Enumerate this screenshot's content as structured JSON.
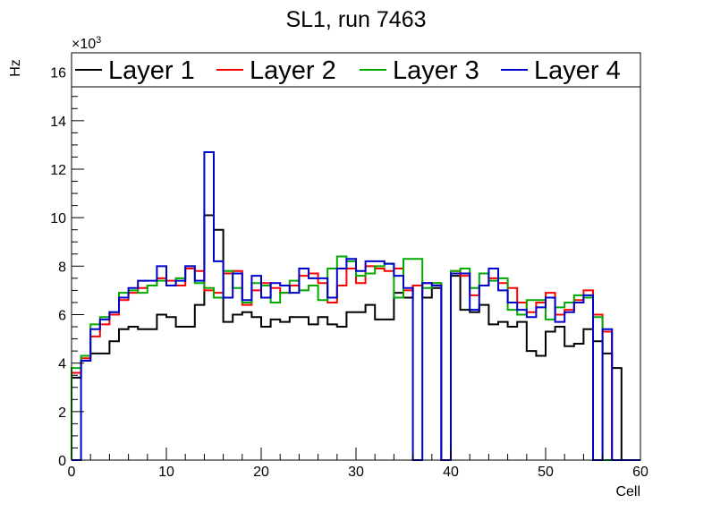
{
  "chart_data": {
    "type": "line",
    "title": "SL1, run 7463",
    "xlabel": "Cell",
    "ylabel": "Hz",
    "multiplier_base": "×10",
    "multiplier_exp": "3",
    "xlim": [
      0,
      60
    ],
    "ylim": [
      0,
      16.8
    ],
    "xticks": [
      0,
      10,
      20,
      30,
      40,
      50,
      60
    ],
    "yticks": [
      0,
      2,
      4,
      6,
      8,
      10,
      12,
      14,
      16
    ],
    "grid": false,
    "legend_position": "top",
    "x": [
      0,
      1,
      2,
      3,
      4,
      5,
      6,
      7,
      8,
      9,
      10,
      11,
      12,
      13,
      14,
      15,
      16,
      17,
      18,
      19,
      20,
      21,
      22,
      23,
      24,
      25,
      26,
      27,
      28,
      29,
      30,
      31,
      32,
      33,
      34,
      35,
      36,
      37,
      38,
      39,
      40,
      41,
      42,
      43,
      44,
      45,
      46,
      47,
      48,
      49,
      50,
      51,
      52,
      53,
      54,
      55,
      56,
      57,
      58,
      59
    ],
    "series": [
      {
        "name": "Layer 1",
        "color": "#000000",
        "values": [
          3.4,
          4.1,
          4.4,
          4.4,
          4.9,
          5.4,
          5.5,
          5.4,
          5.4,
          6.0,
          5.9,
          5.5,
          5.5,
          6.4,
          10.1,
          9.5,
          5.7,
          6.0,
          6.1,
          5.9,
          5.5,
          5.8,
          5.7,
          5.9,
          5.9,
          5.6,
          5.9,
          5.6,
          5.5,
          6.1,
          6.1,
          6.4,
          5.8,
          5.8,
          6.9,
          6.7,
          7.2,
          6.7,
          7.1,
          0,
          7.6,
          6.2,
          6.1,
          6.4,
          5.6,
          5.7,
          5.5,
          5.7,
          4.5,
          4.3,
          5.3,
          5.5,
          4.7,
          4.8,
          5.4,
          4.9,
          4.4,
          3.8,
          0,
          0
        ]
      },
      {
        "name": "Layer 2",
        "color": "#ff0000",
        "values": [
          3.6,
          4.2,
          5.1,
          5.6,
          6.0,
          6.6,
          6.9,
          7.1,
          7.2,
          7.5,
          7.4,
          7.2,
          7.9,
          7.8,
          7.0,
          6.9,
          7.7,
          7.8,
          6.4,
          7.0,
          7.3,
          7.1,
          6.9,
          7.2,
          7.6,
          7.7,
          7.3,
          6.5,
          7.2,
          7.9,
          7.3,
          8.0,
          7.9,
          7.8,
          7.9,
          7.0,
          7.2,
          7.3,
          7.3,
          0,
          7.8,
          7.6,
          6.8,
          7.2,
          7.5,
          7.3,
          7.1,
          6.5,
          6.1,
          6.5,
          6.9,
          6.0,
          6.2,
          6.6,
          7.0,
          6.0,
          5.3,
          0,
          0,
          0
        ]
      },
      {
        "name": "Layer 3",
        "color": "#00aa00",
        "values": [
          3.8,
          4.3,
          5.6,
          5.9,
          6.1,
          6.9,
          7.0,
          6.9,
          7.2,
          7.4,
          7.2,
          7.5,
          8.0,
          7.3,
          7.1,
          6.7,
          7.8,
          7.1,
          6.5,
          7.3,
          7.2,
          6.5,
          6.9,
          7.4,
          7.0,
          7.2,
          6.6,
          7.9,
          8.4,
          8.2,
          7.6,
          7.7,
          8.0,
          8.1,
          6.7,
          8.3,
          8.3,
          7.1,
          7.3,
          0,
          7.8,
          7.9,
          7.1,
          7.7,
          7.4,
          7.5,
          6.2,
          6.0,
          6.6,
          6.6,
          5.8,
          6.3,
          6.5,
          6.8,
          6.7,
          5.9,
          0,
          0,
          0,
          0
        ]
      },
      {
        "name": "Layer 4",
        "color": "#0000cc",
        "values": [
          0,
          4.1,
          5.4,
          5.8,
          6.1,
          6.7,
          7.1,
          7.4,
          7.4,
          8.0,
          7.2,
          7.4,
          8.0,
          7.4,
          12.7,
          8.2,
          6.7,
          7.7,
          6.6,
          7.6,
          6.7,
          7.3,
          7.2,
          6.9,
          7.9,
          7.5,
          7.5,
          6.7,
          7.9,
          8.3,
          7.8,
          8.2,
          8.2,
          8.1,
          7.6,
          7.1,
          0,
          7.3,
          7.2,
          0,
          7.7,
          7.7,
          6.2,
          7.2,
          7.9,
          7.0,
          6.5,
          6.2,
          5.9,
          6.3,
          6.7,
          5.7,
          6.1,
          6.5,
          6.8,
          0,
          5.4,
          0,
          0,
          0
        ]
      }
    ]
  }
}
